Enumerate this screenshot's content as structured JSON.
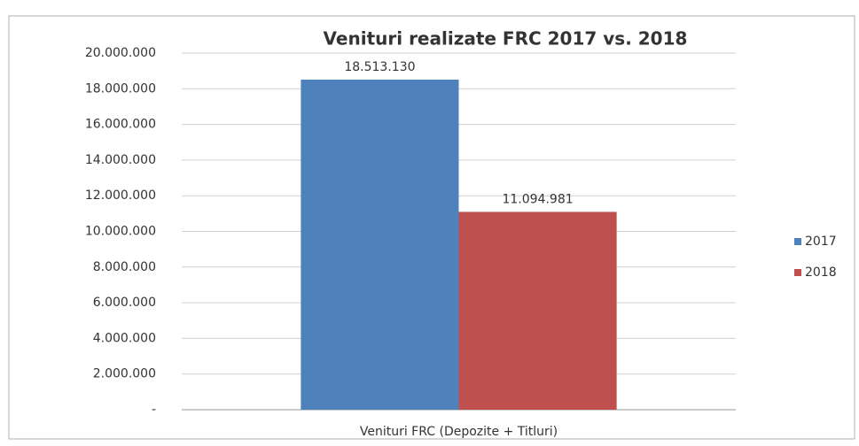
{
  "chart_data": {
    "type": "bar",
    "title": "Venituri realizate FRC 2017 vs. 2018",
    "categories": [
      "Venituri FRC (Depozite + Titluri)"
    ],
    "series": [
      {
        "name": "2017",
        "color": "#4f81bd",
        "values": [
          18513130
        ],
        "value_labels": [
          "18.513.130"
        ]
      },
      {
        "name": "2018",
        "color": "#c0504d",
        "values": [
          11094981
        ],
        "value_labels": [
          "11.094.981"
        ]
      }
    ],
    "ylim": [
      0,
      20000000
    ],
    "yticks": [
      {
        "value": 0,
        "label": "-"
      },
      {
        "value": 2000000,
        "label": "2.000.000"
      },
      {
        "value": 4000000,
        "label": "4.000.000"
      },
      {
        "value": 6000000,
        "label": "6.000.000"
      },
      {
        "value": 8000000,
        "label": "8.000.000"
      },
      {
        "value": 10000000,
        "label": "10.000.000"
      },
      {
        "value": 12000000,
        "label": "12.000.000"
      },
      {
        "value": 14000000,
        "label": "14.000.000"
      },
      {
        "value": 16000000,
        "label": "16.000.000"
      },
      {
        "value": 18000000,
        "label": "18.000.000"
      },
      {
        "value": 20000000,
        "label": "20.000.000"
      }
    ],
    "grid": true,
    "legend": "right"
  }
}
